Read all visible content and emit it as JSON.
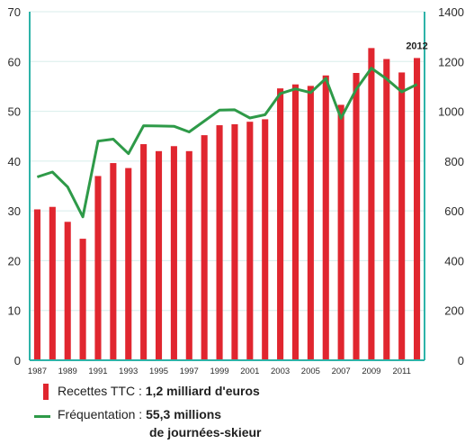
{
  "chart_data": {
    "type": "bar+line",
    "x": [
      1987,
      1988,
      1989,
      1990,
      1991,
      1992,
      1993,
      1994,
      1995,
      1996,
      1997,
      1998,
      1999,
      2000,
      2001,
      2002,
      2003,
      2004,
      2005,
      2006,
      2007,
      2008,
      2009,
      2010,
      2011,
      2012
    ],
    "x_tick_labels": [
      "1987",
      "1989",
      "1991",
      "1993",
      "1995",
      "1997",
      "1999",
      "2001",
      "2003",
      "2005",
      "2007",
      "2009",
      "2011"
    ],
    "series": [
      {
        "name": "Recettes TTC",
        "type": "bar",
        "axis": "left",
        "color": "#e0262f",
        "values": [
          30.3,
          30.8,
          27.8,
          24.4,
          37.0,
          39.6,
          38.6,
          43.4,
          42.0,
          43.0,
          42.0,
          45.2,
          47.2,
          47.4,
          47.9,
          48.4,
          54.6,
          55.4,
          55.1,
          57.2,
          51.3,
          57.7,
          62.7,
          60.5,
          57.8,
          60.7
        ]
      },
      {
        "name": "Fréquentation",
        "type": "line",
        "axis": "right",
        "color": "#2e9a48",
        "values": [
          736,
          756,
          696,
          576,
          880,
          888,
          830,
          942,
          941,
          940,
          917,
          961,
          1005,
          1006,
          973,
          986,
          1071,
          1090,
          1075,
          1132,
          972,
          1088,
          1173,
          1130,
          1078,
          1108
        ]
      }
    ],
    "left_axis": {
      "ylim": [
        0,
        70
      ],
      "ticks": [
        "0",
        "10",
        "20",
        "30",
        "40",
        "50",
        "60",
        "70"
      ]
    },
    "right_axis": {
      "ylim": [
        0,
        1400
      ],
      "ticks": [
        "0",
        "200",
        "400",
        "600",
        "800",
        "1000",
        "1200",
        "1400"
      ]
    },
    "annotation": "2012",
    "grid": true,
    "colors": {
      "axis": "#2eb3a8",
      "grid": "#d8eeeb"
    }
  },
  "legend": {
    "bar": {
      "label": "Recettes TTC : ",
      "value": "1,2 milliard d'euros"
    },
    "line": {
      "label": "Fréquentation : ",
      "value_line1": "55,3 millions",
      "value_line2": "de journées-skieur"
    }
  }
}
